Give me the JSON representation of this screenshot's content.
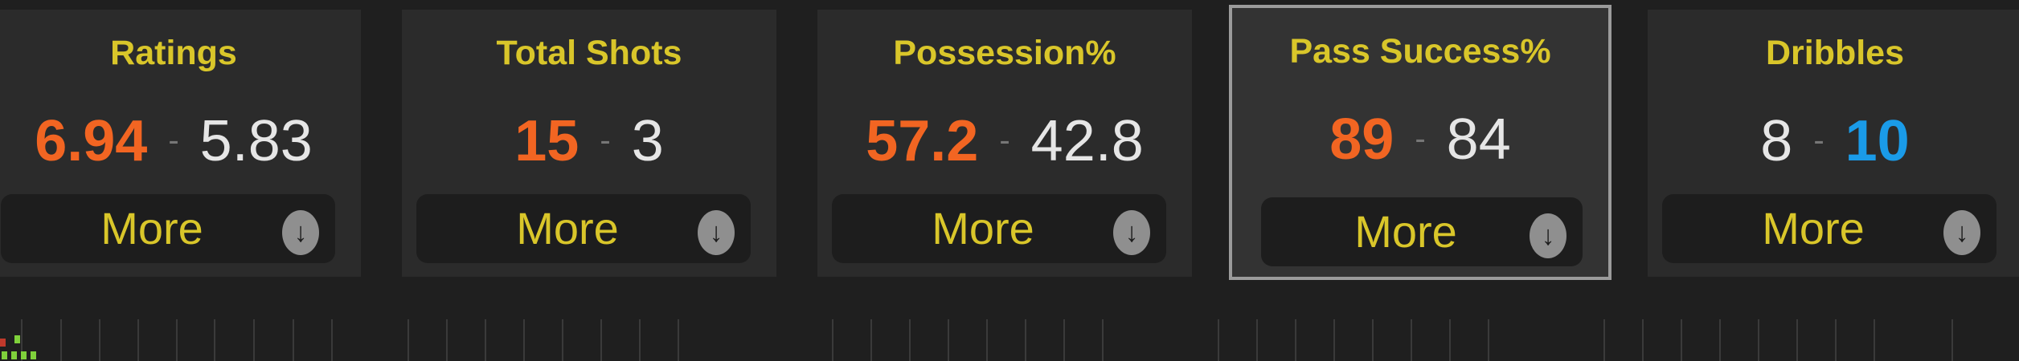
{
  "colors": {
    "home": "#f26522",
    "away_leader": "#1a9be8",
    "neutral": "#e6e6e6",
    "title": "#d9c62a"
  },
  "cards": [
    {
      "title": "Ratings",
      "home": "6.94",
      "away": "5.83",
      "leader": "home",
      "more": "More",
      "icon": "arrow-down-circle-icon"
    },
    {
      "title": "Total Shots",
      "home": "15",
      "away": "3",
      "leader": "home",
      "more": "More",
      "icon": "arrow-down-circle-icon"
    },
    {
      "title": "Possession%",
      "home": "57.2",
      "away": "42.8",
      "leader": "home",
      "more": "More",
      "icon": "arrow-down-circle-icon"
    },
    {
      "title": "Pass Success%",
      "home": "89",
      "away": "84",
      "leader": "home",
      "more": "More",
      "icon": "arrow-down-circle-icon",
      "selected": true
    },
    {
      "title": "Dribbles",
      "home": "8",
      "away": "10",
      "leader": "away",
      "more": "More",
      "icon": "arrow-down-circle-icon"
    }
  ],
  "separator": "-"
}
